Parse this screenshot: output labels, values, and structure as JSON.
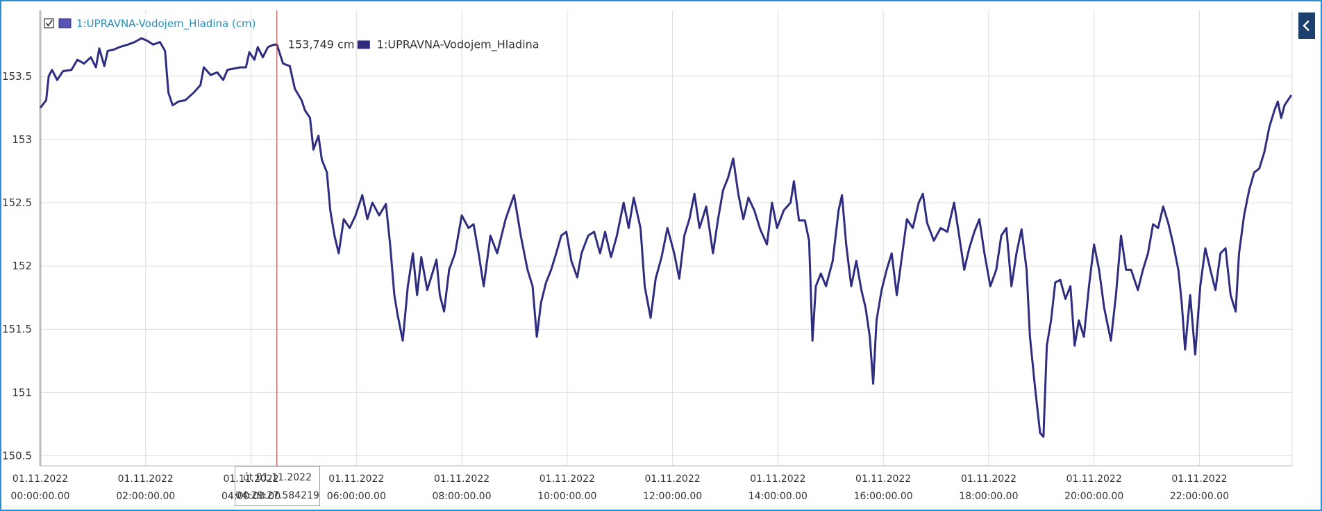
{
  "chart_data": {
    "type": "line",
    "legend": {
      "label": "1:UPRAVNA-Vodojem_Hladina (cm)"
    },
    "x": [
      0,
      0.112,
      0.16,
      0.224,
      0.32,
      0.432,
      0.592,
      0.704,
      0.832,
      0.96,
      1.056,
      1.12,
      1.216,
      1.28,
      1.392,
      1.504,
      1.664,
      1.792,
      1.92,
      2.032,
      2.144,
      2.272,
      2.368,
      2.432,
      2.512,
      2.624,
      2.752,
      2.912,
      3.04,
      3.104,
      3.232,
      3.36,
      3.472,
      3.552,
      3.792,
      3.904,
      3.968,
      4.064,
      4.128,
      4.224,
      4.32,
      4.432,
      4.491,
      4.608,
      4.736,
      4.832,
      4.96,
      5.024,
      5.12,
      5.184,
      5.28,
      5.344,
      5.44,
      5.504,
      5.584,
      5.664,
      5.76,
      5.872,
      5.984,
      6.112,
      6.208,
      6.304,
      6.432,
      6.56,
      6.64,
      6.72,
      6.784,
      6.88,
      6.976,
      7.072,
      7.152,
      7.232,
      7.344,
      7.44,
      7.52,
      7.584,
      7.664,
      7.76,
      7.872,
      8,
      8.128,
      8.224,
      8.32,
      8.416,
      8.544,
      8.672,
      8.832,
      8.992,
      9.12,
      9.248,
      9.344,
      9.424,
      9.504,
      9.6,
      9.696,
      9.792,
      9.888,
      9.984,
      10.08,
      10.192,
      10.272,
      10.4,
      10.512,
      10.624,
      10.72,
      10.832,
      10.944,
      11.072,
      11.168,
      11.264,
      11.392,
      11.472,
      11.584,
      11.68,
      11.792,
      11.904,
      12.032,
      12.128,
      12.224,
      12.32,
      12.416,
      12.512,
      12.64,
      12.768,
      12.864,
      12.96,
      13.056,
      13.152,
      13.248,
      13.344,
      13.44,
      13.552,
      13.664,
      13.792,
      13.888,
      13.984,
      14.112,
      14.24,
      14.304,
      14.4,
      14.512,
      14.592,
      14.656,
      14.72,
      14.816,
      14.912,
      15.04,
      15.152,
      15.216,
      15.296,
      15.392,
      15.488,
      15.584,
      15.664,
      15.744,
      15.808,
      15.872,
      15.968,
      16.064,
      16.16,
      16.256,
      16.352,
      16.448,
      16.56,
      16.672,
      16.752,
      16.832,
      16.96,
      17.088,
      17.216,
      17.344,
      17.44,
      17.536,
      17.632,
      17.728,
      17.824,
      17.92,
      18.032,
      18.144,
      18.24,
      18.336,
      18.432,
      18.528,
      18.624,
      18.72,
      18.784,
      18.88,
      18.976,
      19.04,
      19.104,
      19.184,
      19.264,
      19.36,
      19.456,
      19.552,
      19.632,
      19.712,
      19.808,
      19.904,
      20,
      20.096,
      20.192,
      20.32,
      20.416,
      20.512,
      20.608,
      20.704,
      20.832,
      20.928,
      21.024,
      21.12,
      21.216,
      21.312,
      21.408,
      21.504,
      21.6,
      21.664,
      21.728,
      21.824,
      21.92,
      22.016,
      22.112,
      22.208,
      22.304,
      22.4,
      22.496,
      22.592,
      22.688,
      22.752,
      22.848,
      22.944,
      23.04,
      23.136,
      23.232,
      23.328,
      23.424,
      23.488,
      23.552,
      23.616,
      23.744
    ],
    "series": [
      {
        "name": "1:UPRAVNA-Vodojem_Hladina",
        "color": "#2e2d7f",
        "values": [
          153.25,
          153.31,
          153.5,
          153.55,
          153.47,
          153.54,
          153.55,
          153.63,
          153.6,
          153.65,
          153.57,
          153.72,
          153.58,
          153.7,
          153.71,
          153.73,
          153.75,
          153.77,
          153.8,
          153.78,
          153.75,
          153.77,
          153.7,
          153.37,
          153.27,
          153.3,
          153.31,
          153.37,
          153.43,
          153.57,
          153.51,
          153.53,
          153.47,
          153.55,
          153.57,
          153.57,
          153.69,
          153.63,
          153.73,
          153.65,
          153.73,
          153.75,
          153.749,
          153.6,
          153.58,
          153.4,
          153.31,
          153.23,
          153.17,
          152.92,
          153.03,
          152.84,
          152.74,
          152.44,
          152.24,
          152.1,
          152.37,
          152.3,
          152.4,
          152.56,
          152.37,
          152.5,
          152.4,
          152.49,
          152.17,
          151.77,
          151.61,
          151.41,
          151.84,
          152.1,
          151.77,
          152.07,
          151.81,
          151.94,
          152.05,
          151.77,
          151.64,
          151.97,
          152.1,
          152.4,
          152.3,
          152.33,
          152.1,
          151.84,
          152.24,
          152.1,
          152.37,
          152.56,
          152.24,
          151.97,
          151.84,
          151.44,
          151.71,
          151.87,
          151.97,
          152.1,
          152.24,
          152.27,
          152.04,
          151.91,
          152.1,
          152.24,
          152.27,
          152.1,
          152.27,
          152.07,
          152.24,
          152.5,
          152.3,
          152.54,
          152.3,
          151.84,
          151.59,
          151.9,
          152.07,
          152.3,
          152.1,
          151.9,
          152.24,
          152.37,
          152.57,
          152.3,
          152.47,
          152.1,
          152.37,
          152.6,
          152.7,
          152.85,
          152.57,
          152.37,
          152.54,
          152.44,
          152.29,
          152.17,
          152.5,
          152.3,
          152.44,
          152.5,
          152.67,
          152.36,
          152.36,
          152.2,
          151.41,
          151.84,
          151.94,
          151.84,
          152.04,
          152.44,
          152.56,
          152.17,
          151.84,
          152.04,
          151.81,
          151.67,
          151.44,
          151.07,
          151.57,
          151.81,
          151.97,
          152.1,
          151.77,
          152.07,
          152.37,
          152.3,
          152.5,
          152.57,
          152.34,
          152.2,
          152.3,
          152.27,
          152.5,
          152.24,
          151.97,
          152.14,
          152.27,
          152.37,
          152.1,
          151.84,
          151.97,
          152.24,
          152.3,
          151.84,
          152.1,
          152.29,
          151.97,
          151.44,
          151.04,
          150.68,
          150.65,
          151.37,
          151.57,
          151.87,
          151.89,
          151.74,
          151.84,
          151.37,
          151.57,
          151.44,
          151.84,
          152.17,
          151.97,
          151.67,
          151.41,
          151.77,
          152.24,
          151.97,
          151.97,
          151.81,
          151.97,
          152.1,
          152.33,
          152.3,
          152.47,
          152.34,
          152.17,
          151.97,
          151.71,
          151.34,
          151.77,
          151.3,
          151.84,
          152.14,
          151.97,
          151.81,
          152.1,
          152.14,
          151.77,
          151.64,
          152.1,
          152.4,
          152.6,
          152.74,
          152.77,
          152.9,
          153.1,
          153.23,
          153.3,
          153.17,
          153.27,
          153.35
        ]
      }
    ],
    "xlim": [
      0,
      23.76
    ],
    "xticks": [
      {
        "value": 0,
        "label": "01.11.2022\n00:00:00.00"
      },
      {
        "value": 2,
        "label": "01.11.2022\n02:00:00.00"
      },
      {
        "value": 4,
        "label": "01.11.2022\n04:00:00.00"
      },
      {
        "value": 6,
        "label": "01.11.2022\n06:00:00.00"
      },
      {
        "value": 8,
        "label": "01.11.2022\n08:00:00.00"
      },
      {
        "value": 10,
        "label": "01.11.2022\n10:00:00.00"
      },
      {
        "value": 12,
        "label": "01.11.2022\n12:00:00.00"
      },
      {
        "value": 14,
        "label": "01.11.2022\n14:00:00.00"
      },
      {
        "value": 16,
        "label": "01.11.2022\n16:00:00.00"
      },
      {
        "value": 18,
        "label": "01.11.2022\n18:00:00.00"
      },
      {
        "value": 20,
        "label": "01.11.2022\n20:00:00.00"
      },
      {
        "value": 22,
        "label": "01.11.2022\n22:00:00.00"
      }
    ],
    "ylim": [
      150.42,
      154.02
    ],
    "yticks": [
      150.5,
      151,
      151.5,
      152,
      152.5,
      153,
      153.5
    ],
    "grid": true,
    "tooltip": {
      "x": 4.491,
      "value": 153.749,
      "value_label": "153,749 cm",
      "x_label": "út 01.11.2022\n04:29:27.584219"
    }
  }
}
